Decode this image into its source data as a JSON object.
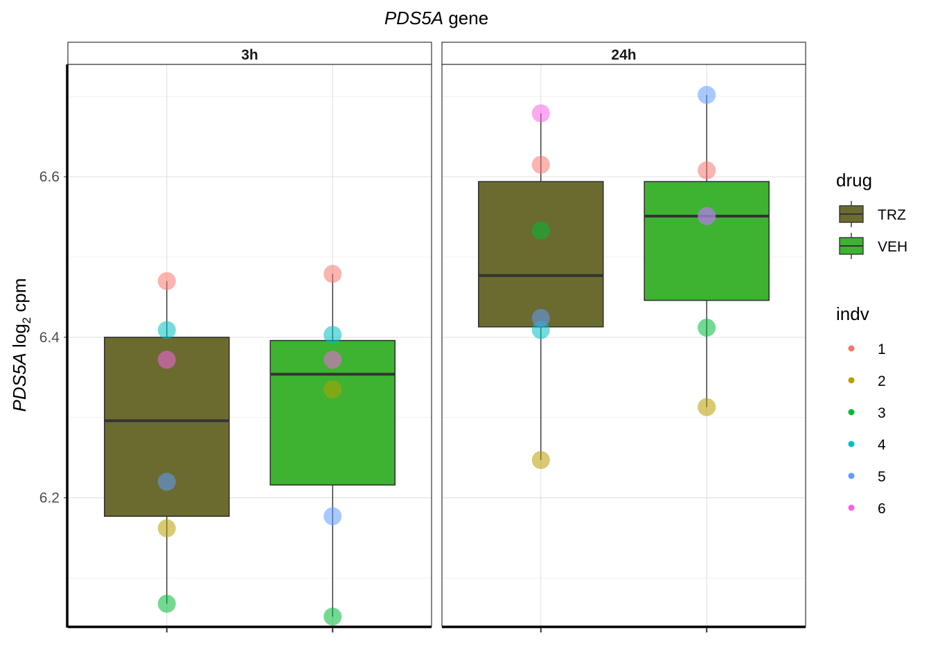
{
  "chart_data": {
    "type": "box",
    "title_italic": "PDS5A",
    "title_rest": " gene",
    "ylabel_italic": "PDS5A",
    "ylabel_rest": " log",
    "ylabel_sub": "2",
    "ylabel_tail": " cpm",
    "ylim": [
      6.04,
      6.74
    ],
    "y_ticks": [
      6.2,
      6.4,
      6.6
    ],
    "y_tick_labels": [
      "6.2",
      "6.4",
      "6.6"
    ],
    "grid": true,
    "legend_position": "right",
    "x_categories": [
      "TRZ",
      "VEH"
    ],
    "colors": {
      "TRZ": "#6B6B30",
      "VEH": "#3DB331",
      "indv": {
        "1": "#F8766D",
        "2": "#B79F00",
        "3": "#00BA38",
        "4": "#00BFC4",
        "5": "#619CFF",
        "6": "#F564E3"
      }
    },
    "facets": [
      {
        "label": "3h",
        "boxes": [
          {
            "drug": "TRZ",
            "q1": 6.177,
            "median": 6.296,
            "q3": 6.4,
            "whisker_low": 6.068,
            "whisker_high": 6.47,
            "points": [
              {
                "indv": "1",
                "y": 6.47
              },
              {
                "indv": "2",
                "y": 6.162
              },
              {
                "indv": "3",
                "y": 6.068
              },
              {
                "indv": "4",
                "y": 6.409
              },
              {
                "indv": "5",
                "y": 6.22
              },
              {
                "indv": "6",
                "y": 6.372
              }
            ]
          },
          {
            "drug": "VEH",
            "q1": 6.216,
            "median": 6.354,
            "q3": 6.396,
            "whisker_low": 6.052,
            "whisker_high": 6.479,
            "points": [
              {
                "indv": "1",
                "y": 6.479
              },
              {
                "indv": "2",
                "y": 6.335
              },
              {
                "indv": "3",
                "y": 6.052
              },
              {
                "indv": "4",
                "y": 6.403
              },
              {
                "indv": "5",
                "y": 6.177
              },
              {
                "indv": "6",
                "y": 6.372
              }
            ]
          }
        ]
      },
      {
        "label": "24h",
        "boxes": [
          {
            "drug": "TRZ",
            "q1": 6.413,
            "median": 6.477,
            "q3": 6.594,
            "whisker_low": 6.247,
            "whisker_high": 6.679,
            "points": [
              {
                "indv": "1",
                "y": 6.615
              },
              {
                "indv": "2",
                "y": 6.247
              },
              {
                "indv": "3",
                "y": 6.533
              },
              {
                "indv": "4",
                "y": 6.409
              },
              {
                "indv": "5",
                "y": 6.424
              },
              {
                "indv": "6",
                "y": 6.679
              }
            ]
          },
          {
            "drug": "VEH",
            "q1": 6.446,
            "median": 6.551,
            "q3": 6.594,
            "whisker_low": 6.313,
            "whisker_high": 6.702,
            "points": [
              {
                "indv": "1",
                "y": 6.608
              },
              {
                "indv": "2",
                "y": 6.313
              },
              {
                "indv": "3",
                "y": 6.412
              },
              {
                "indv": "4",
                "y": 6.551
              },
              {
                "indv": "5",
                "y": 6.702
              },
              {
                "indv": "6",
                "y": 6.551
              }
            ]
          }
        ]
      }
    ],
    "legends": {
      "drug": {
        "title": "drug",
        "items": [
          "TRZ",
          "VEH"
        ]
      },
      "indv": {
        "title": "indv",
        "items": [
          "1",
          "2",
          "3",
          "4",
          "5",
          "6"
        ]
      }
    }
  }
}
